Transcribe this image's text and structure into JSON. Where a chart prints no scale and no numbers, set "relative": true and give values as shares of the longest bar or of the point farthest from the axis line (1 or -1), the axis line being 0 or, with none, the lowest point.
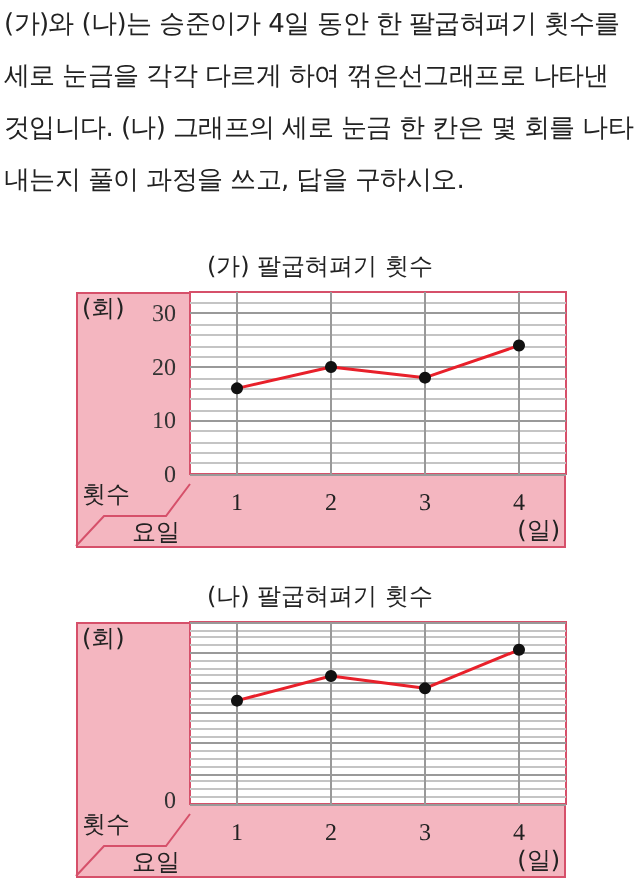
{
  "chart_data": [
    {
      "type": "line",
      "title": "(가) 팔굽혀펴기 횟수",
      "xlabel": "(일)",
      "ylabel": "(회)",
      "annotations": [
        "(가)와 (나)는 승준이가 4일 동안 한 팔굽혀펴기 횟수를 세로 눈금을 각각 다르게 하여 꺾은선그래프로 나타낸 것입니다. (나) 그래프의 세로 눈금 한 칸은 몇 회를 나타내는지 풀이 과정을 쓰고, 답을 구하시오.",
        "횟수",
        "요일"
      ],
      "categories": [
        "1",
        "2",
        "3",
        "4"
      ],
      "series": [
        {
          "color": "#e8202a",
          "values": [
            16,
            20,
            18,
            24
          ]
        }
      ],
      "ylim": [
        0,
        34
      ],
      "yticks": [
        0,
        10,
        20,
        30
      ],
      "grid": true,
      "marker": "circle"
    },
    {
      "type": "line",
      "title": "(나) 팔굽혀펴기 횟수",
      "xlabel": "(일)",
      "ylabel": "(회)",
      "annotations": [
        "0",
        "횟수",
        "요일"
      ],
      "categories": [
        "1",
        "2",
        "3",
        "4"
      ],
      "series": [
        {
          "color": "#e8202a",
          "values": [
            0.67,
            0.83,
            0.75,
            1
          ]
        }
      ],
      "relative": true,
      "grid": true,
      "marker": "circle"
    }
  ]
}
